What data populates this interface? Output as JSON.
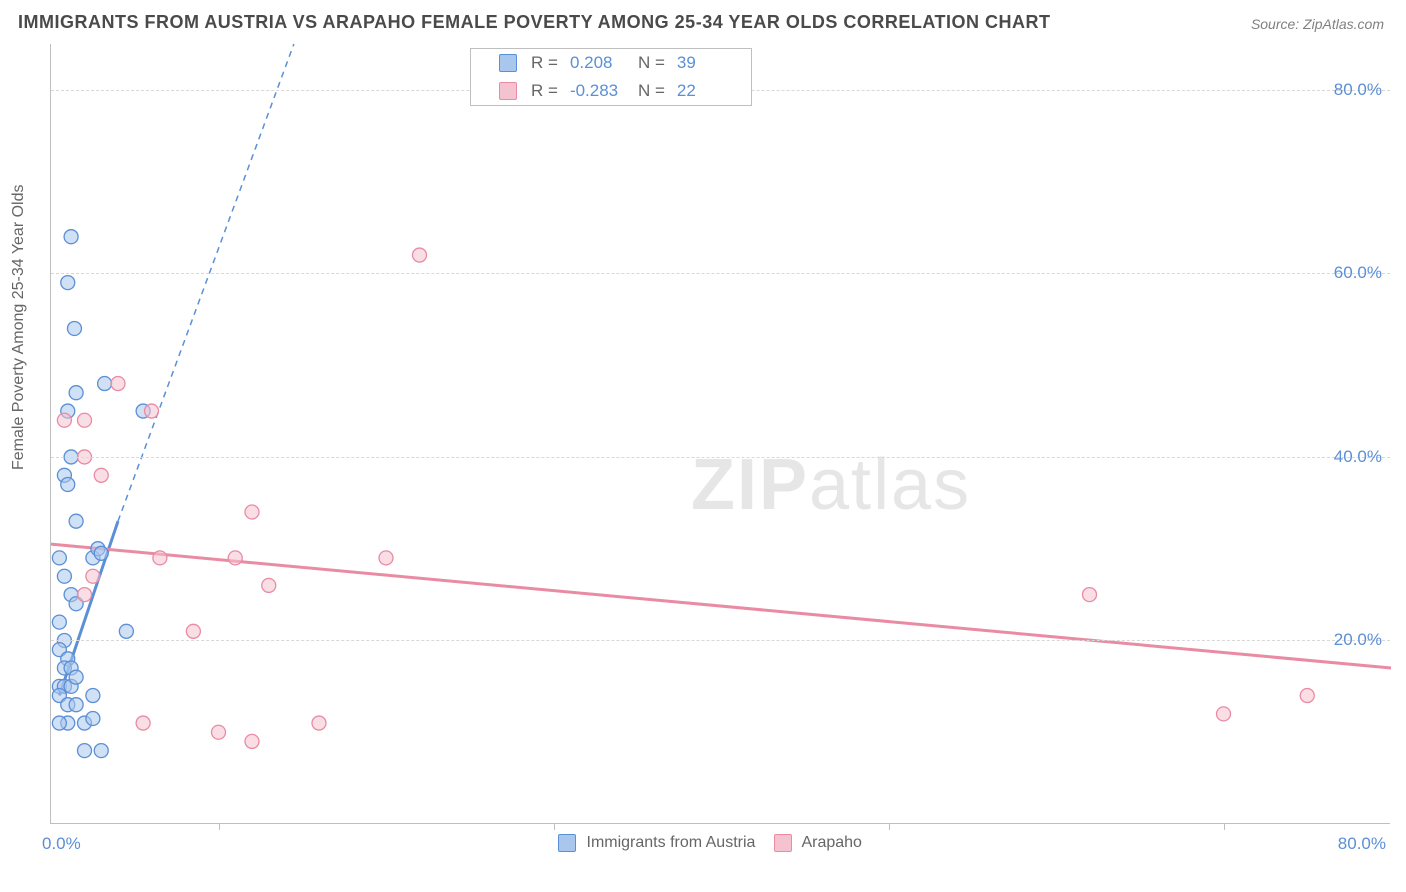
{
  "title": "IMMIGRANTS FROM AUSTRIA VS ARAPAHO FEMALE POVERTY AMONG 25-34 YEAR OLDS CORRELATION CHART",
  "source": "Source: ZipAtlas.com",
  "ylabel": "Female Poverty Among 25-34 Year Olds",
  "watermark_bold": "ZIP",
  "watermark_rest": "atlas",
  "chart": {
    "type": "scatter",
    "xlim": [
      0,
      80
    ],
    "ylim": [
      0,
      85
    ],
    "ytick_values": [
      20,
      40,
      60,
      80
    ],
    "ytick_labels": [
      "20.0%",
      "40.0%",
      "60.0%",
      "80.0%"
    ],
    "xtick_values": [
      10,
      30,
      50,
      70
    ],
    "x_min_label": "0.0%",
    "x_max_label": "80.0%",
    "background_color": "#ffffff",
    "grid_color": "#d8d8d8",
    "marker_radius": 7,
    "marker_opacity": 0.55,
    "series": [
      {
        "name": "Immigrants from Austria",
        "color_fill": "#a9c6ec",
        "color_stroke": "#5b8fd6",
        "R": "0.208",
        "N": "39",
        "points": [
          [
            1.2,
            64
          ],
          [
            1.0,
            59
          ],
          [
            1.4,
            54
          ],
          [
            1.0,
            45
          ],
          [
            1.5,
            47
          ],
          [
            3.2,
            48
          ],
          [
            5.5,
            45
          ],
          [
            1.2,
            40
          ],
          [
            0.8,
            38
          ],
          [
            1.0,
            37
          ],
          [
            1.5,
            33
          ],
          [
            0.5,
            29
          ],
          [
            2.5,
            29
          ],
          [
            2.8,
            30
          ],
          [
            3.0,
            29.5
          ],
          [
            0.8,
            27
          ],
          [
            1.2,
            25
          ],
          [
            1.5,
            24
          ],
          [
            0.5,
            22
          ],
          [
            0.8,
            20
          ],
          [
            4.5,
            21
          ],
          [
            0.5,
            19
          ],
          [
            1.0,
            18
          ],
          [
            0.8,
            17
          ],
          [
            1.2,
            17
          ],
          [
            0.5,
            15
          ],
          [
            0.8,
            15
          ],
          [
            1.2,
            15
          ],
          [
            1.5,
            16
          ],
          [
            0.5,
            14
          ],
          [
            1.0,
            13
          ],
          [
            1.5,
            13
          ],
          [
            2.5,
            14
          ],
          [
            1.0,
            11
          ],
          [
            0.5,
            11
          ],
          [
            2.0,
            11
          ],
          [
            2.5,
            11.5
          ],
          [
            2.0,
            8
          ],
          [
            3.0,
            8
          ]
        ],
        "trend_solid": {
          "x1": 0.5,
          "y1": 14,
          "x2": 4.0,
          "y2": 33
        },
        "trend_dashed": {
          "x1": 4.0,
          "y1": 33,
          "x2": 14.5,
          "y2": 85
        }
      },
      {
        "name": "Arapaho",
        "color_fill": "#f5c3cf",
        "color_stroke": "#e98ba3",
        "R": "-0.283",
        "N": "22",
        "points": [
          [
            22,
            62
          ],
          [
            4.0,
            48
          ],
          [
            6.0,
            45
          ],
          [
            2.0,
            44
          ],
          [
            0.8,
            44
          ],
          [
            2.0,
            40
          ],
          [
            3.0,
            38
          ],
          [
            12,
            34
          ],
          [
            6.5,
            29
          ],
          [
            11,
            29
          ],
          [
            2.5,
            27
          ],
          [
            2.0,
            25
          ],
          [
            13,
            26
          ],
          [
            62,
            25
          ],
          [
            8.5,
            21
          ],
          [
            20,
            29
          ],
          [
            75,
            14
          ],
          [
            70,
            12
          ],
          [
            16,
            11
          ],
          [
            10,
            10
          ],
          [
            12,
            9
          ],
          [
            5.5,
            11
          ]
        ],
        "trend_solid": {
          "x1": 0,
          "y1": 30.5,
          "x2": 80,
          "y2": 17
        }
      }
    ]
  },
  "top_legend": {
    "label_R": "R =",
    "label_N": "N ="
  },
  "bottom_legend": {
    "items": [
      "Immigrants from Austria",
      "Arapaho"
    ]
  }
}
